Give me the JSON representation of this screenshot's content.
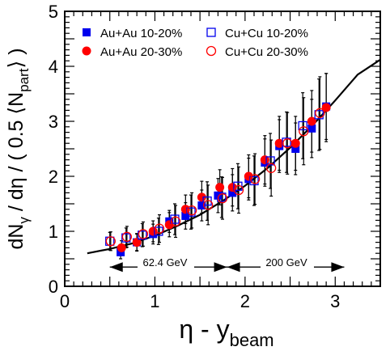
{
  "chart_data": {
    "type": "scatter",
    "xlabel": {
      "main": "η - y",
      "sub": "beam"
    },
    "ylabel": {
      "pre": "dN",
      "sub1": "γ",
      "mid": " / dη / ( 0.5 ⟨N",
      "sub2": "part",
      "post": "⟩ )"
    },
    "xlim": [
      0,
      3.5
    ],
    "ylim": [
      0,
      5
    ],
    "xticks": [
      0,
      1,
      2,
      3
    ],
    "yticks": [
      0,
      1,
      2,
      3,
      4,
      5
    ],
    "legend": [
      {
        "label": "Au+Au 10-20%",
        "marker": "filled-square",
        "color": "#0000ee"
      },
      {
        "label": "Au+Au 20-30%",
        "marker": "filled-circle",
        "color": "#ff0000"
      },
      {
        "label": "Cu+Cu 10-20%",
        "marker": "open-square",
        "color": "#0000ee"
      },
      {
        "label": "Cu+Cu 20-30%",
        "marker": "open-circle",
        "color": "#ff0000"
      }
    ],
    "annotations": {
      "band_6234": {
        "label": "62.4 GeV",
        "x_range": [
          0.5,
          1.8
        ]
      },
      "band_200": {
        "label": "200 GeV",
        "x_range": [
          1.8,
          3.1
        ]
      }
    },
    "series": [
      {
        "name": "Au+Au 10-20%",
        "marker": "filled-square",
        "color": "#0000ee",
        "x": [
          0.62,
          0.8,
          0.98,
          1.16,
          1.34,
          1.52,
          1.7,
          1.86,
          2.04,
          2.22,
          2.38,
          2.56,
          2.74,
          2.9
        ],
        "y": [
          0.62,
          0.8,
          0.95,
          1.18,
          1.28,
          1.47,
          1.65,
          1.7,
          1.95,
          2.25,
          2.55,
          2.5,
          2.87,
          3.27
        ],
        "err": [
          0.12,
          0.15,
          0.18,
          0.2,
          0.24,
          0.28,
          0.31,
          0.33,
          0.38,
          0.43,
          0.48,
          0.47,
          0.53,
          0.6
        ]
      },
      {
        "name": "Au+Au 20-30%",
        "marker": "filled-circle",
        "color": "#ff0000",
        "x": [
          0.63,
          0.8,
          0.98,
          1.16,
          1.34,
          1.52,
          1.72,
          1.86,
          2.04,
          2.22,
          2.38,
          2.56,
          2.74,
          2.9
        ],
        "y": [
          0.7,
          0.8,
          1.0,
          1.12,
          1.4,
          1.62,
          1.8,
          1.8,
          2.0,
          2.3,
          2.6,
          2.6,
          3.0,
          3.25
        ],
        "err": [
          0.13,
          0.16,
          0.19,
          0.22,
          0.26,
          0.29,
          0.32,
          0.34,
          0.39,
          0.44,
          0.49,
          0.49,
          0.56,
          0.62
        ]
      },
      {
        "name": "Cu+Cu 10-20%",
        "marker": "open-square",
        "color": "#0000ee",
        "x": [
          0.5,
          0.68,
          0.86,
          1.04,
          1.22,
          1.4,
          1.58,
          1.74,
          1.92,
          2.1,
          2.28,
          2.46,
          2.64,
          2.82
        ],
        "y": [
          0.82,
          0.88,
          0.93,
          1.0,
          1.22,
          1.35,
          1.55,
          1.62,
          1.82,
          1.92,
          2.28,
          2.62,
          2.92,
          3.12
        ],
        "err": [
          0.16,
          0.18,
          0.21,
          0.24,
          0.28,
          0.31,
          0.35,
          0.37,
          0.41,
          0.45,
          0.5,
          0.55,
          0.6,
          0.65
        ]
      },
      {
        "name": "Cu+Cu 20-30%",
        "marker": "open-circle",
        "color": "#ff0000",
        "x": [
          0.51,
          0.69,
          0.87,
          1.05,
          1.23,
          1.41,
          1.59,
          1.75,
          1.93,
          2.11,
          2.29,
          2.47,
          2.65,
          2.83
        ],
        "y": [
          0.82,
          0.9,
          0.95,
          1.05,
          1.18,
          1.38,
          1.48,
          1.6,
          1.75,
          1.95,
          2.15,
          2.6,
          2.82,
          3.15
        ],
        "err": [
          0.17,
          0.19,
          0.22,
          0.25,
          0.29,
          0.32,
          0.36,
          0.38,
          0.42,
          0.46,
          0.51,
          0.56,
          0.61,
          0.66
        ]
      }
    ],
    "fit_curve": {
      "x": [
        0.25,
        0.5,
        0.75,
        1.0,
        1.25,
        1.5,
        1.75,
        2.0,
        2.25,
        2.5,
        2.75,
        3.0,
        3.25,
        3.5
      ],
      "y": [
        0.6,
        0.68,
        0.78,
        0.92,
        1.1,
        1.3,
        1.55,
        1.83,
        2.15,
        2.52,
        2.93,
        3.38,
        3.85,
        4.12
      ]
    }
  }
}
